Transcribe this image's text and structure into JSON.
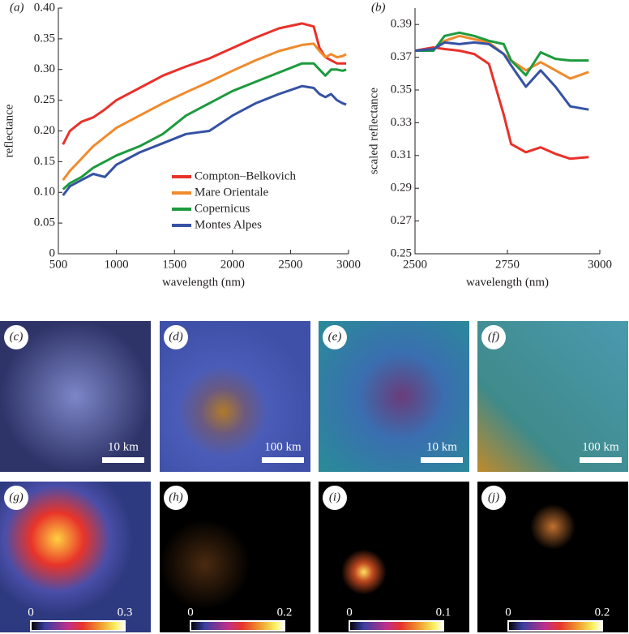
{
  "chart_data": [
    {
      "type": "line",
      "panel_label": "(a)",
      "xlabel": "wavelength (nm)",
      "ylabel": "reflectance",
      "xlim": [
        500,
        3000
      ],
      "xticks": [
        500,
        1000,
        1500,
        2000,
        2500,
        3000
      ],
      "ylim": [
        0,
        0.4
      ],
      "yticks": [
        0,
        0.05,
        {
          "value": 0.1,
          "label": "0.10"
        },
        0.15,
        {
          "value": 0.2,
          "label": "0.20"
        },
        0.25,
        {
          "value": 0.3,
          "label": "0.30"
        },
        0.35,
        {
          "value": 0.4,
          "label": "0.40"
        }
      ],
      "legend": "center",
      "x": [
        540,
        600,
        700,
        800,
        900,
        1000,
        1200,
        1400,
        1600,
        1800,
        2000,
        2200,
        2400,
        2600,
        2700,
        2750,
        2800,
        2850,
        2900,
        2950,
        2980
      ],
      "series": [
        {
          "name": "Compton–Belkovich",
          "color": "#e8312a",
          "values": [
            0.178,
            0.2,
            0.215,
            0.222,
            0.235,
            0.25,
            0.27,
            0.29,
            0.305,
            0.318,
            0.335,
            0.352,
            0.367,
            0.375,
            0.37,
            0.335,
            0.32,
            0.315,
            0.31,
            0.31,
            0.31
          ]
        },
        {
          "name": "Mare Orientale",
          "color": "#f08a2c",
          "values": [
            0.12,
            0.135,
            0.155,
            0.175,
            0.19,
            0.205,
            0.225,
            0.245,
            0.263,
            0.28,
            0.298,
            0.315,
            0.33,
            0.34,
            0.342,
            0.33,
            0.32,
            0.325,
            0.32,
            0.322,
            0.325
          ]
        },
        {
          "name": "Copernicus",
          "color": "#1e9a3e",
          "values": [
            0.105,
            0.115,
            0.125,
            0.14,
            0.15,
            0.16,
            0.175,
            0.195,
            0.225,
            0.245,
            0.265,
            0.28,
            0.295,
            0.31,
            0.31,
            0.3,
            0.29,
            0.3,
            0.3,
            0.298,
            0.3
          ]
        },
        {
          "name": "Montes Alpes",
          "color": "#3552a4",
          "values": [
            0.095,
            0.11,
            0.12,
            0.13,
            0.125,
            0.145,
            0.165,
            0.18,
            0.195,
            0.2,
            0.225,
            0.245,
            0.26,
            0.273,
            0.27,
            0.26,
            0.255,
            0.26,
            0.25,
            0.245,
            0.243
          ]
        }
      ]
    },
    {
      "type": "line",
      "panel_label": "(b)",
      "xlabel": "wavelength (nm)",
      "ylabel": "scaled reflectance",
      "xlim": [
        2500,
        3000
      ],
      "xticks": [
        2500,
        2750,
        3000
      ],
      "ylim": [
        0.25,
        0.4
      ],
      "yticks": [
        0.25,
        0.27,
        0.29,
        0.31,
        0.33,
        0.35,
        0.37,
        0.39
      ],
      "x": [
        2500,
        2550,
        2580,
        2620,
        2660,
        2700,
        2740,
        2760,
        2800,
        2840,
        2880,
        2920,
        2970
      ],
      "series": [
        {
          "color": "#e8312a",
          "values": [
            0.374,
            0.376,
            0.375,
            0.374,
            0.372,
            0.366,
            0.335,
            0.317,
            0.312,
            0.315,
            0.311,
            0.308,
            0.309
          ]
        },
        {
          "color": "#f08a2c",
          "values": [
            0.374,
            0.375,
            0.38,
            0.383,
            0.381,
            0.379,
            0.372,
            0.368,
            0.362,
            0.367,
            0.362,
            0.357,
            0.361
          ]
        },
        {
          "color": "#1e9a3e",
          "values": [
            0.374,
            0.374,
            0.383,
            0.385,
            0.383,
            0.38,
            0.378,
            0.368,
            0.359,
            0.373,
            0.369,
            0.368,
            0.368
          ]
        },
        {
          "color": "#3552a4",
          "values": [
            0.374,
            0.375,
            0.379,
            0.378,
            0.379,
            0.378,
            0.372,
            0.365,
            0.352,
            0.362,
            0.352,
            0.34,
            0.338
          ]
        }
      ]
    }
  ],
  "image_panels": [
    {
      "label": "(c)",
      "scale_bar": "10 km"
    },
    {
      "label": "(d)",
      "scale_bar": "100 km"
    },
    {
      "label": "(e)",
      "scale_bar": "10 km"
    },
    {
      "label": "(f)",
      "scale_bar": "100 km"
    },
    {
      "label": "(g)",
      "colorbar_min": 0,
      "colorbar_max": 0.3
    },
    {
      "label": "(h)",
      "colorbar_min": 0,
      "colorbar_max": 0.2
    },
    {
      "label": "(i)",
      "colorbar_min": 0,
      "colorbar_max": 0.1
    },
    {
      "label": "(j)",
      "colorbar_min": 0,
      "colorbar_max": 0.2
    }
  ]
}
